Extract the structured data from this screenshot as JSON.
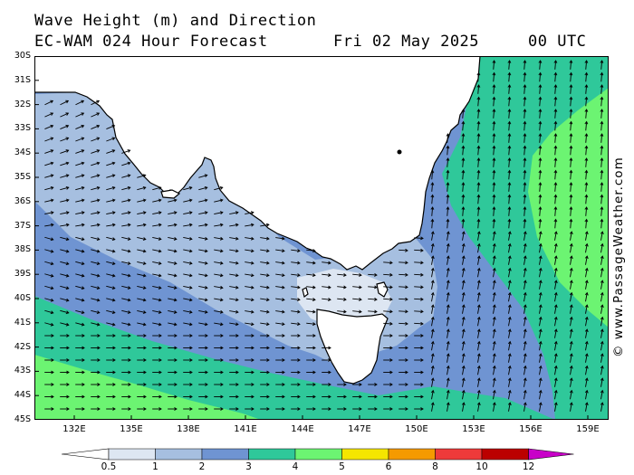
{
  "title": {
    "line1": "Wave Height (m) and Direction",
    "model": "EC-WAM 024 Hour Forecast",
    "date": "Fri 02 May 2025",
    "time": "00 UTC"
  },
  "credit": "© www.PassageWeather.com",
  "lat_labels": [
    "30S",
    "31S",
    "32S",
    "33S",
    "34S",
    "35S",
    "36S",
    "37S",
    "38S",
    "39S",
    "40S",
    "41S",
    "42S",
    "43S",
    "44S",
    "45S"
  ],
  "lon_labels": [
    "132E",
    "135E",
    "138E",
    "141E",
    "144E",
    "147E",
    "150E",
    "153E",
    "156E",
    "159E"
  ],
  "legend": {
    "labels": [
      "0.5",
      "1",
      "2",
      "3",
      "4",
      "5",
      "6",
      "8",
      "10",
      "12"
    ],
    "colors": [
      "#dde6f2",
      "#a6bfe0",
      "#6f94d2",
      "#2fc89a",
      "#6cf472",
      "#f5e600",
      "#f59a00",
      "#ee3a3a",
      "#bb0000",
      "#c800c8"
    ]
  },
  "colors": {
    "land": "#ffffff",
    "coast": "#000000",
    "very_light": "#dde6f2",
    "light_blue": "#a6bfe0",
    "mid_blue": "#6f94d2",
    "teal": "#2fc89a",
    "green": "#6cf472"
  }
}
